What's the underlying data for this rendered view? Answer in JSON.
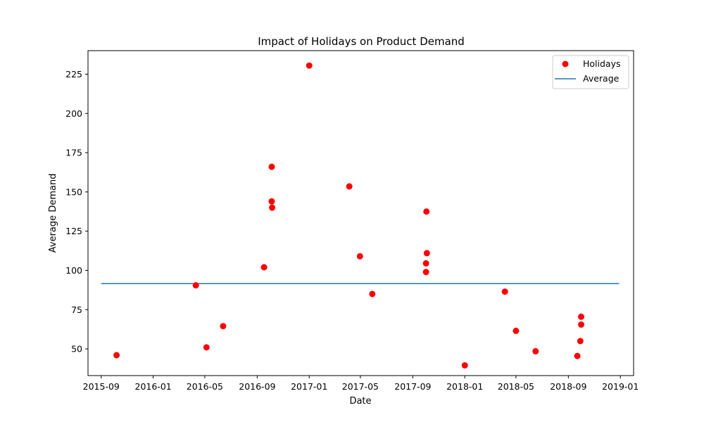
{
  "chart_data": {
    "type": "scatter",
    "title": "Impact of Holidays on Product Demand",
    "xlabel": "Date",
    "ylabel": "Average Demand",
    "xlim": [
      "2015-08-01",
      "2019-02-01"
    ],
    "ylim": [
      33,
      240
    ],
    "x_ticks": [
      "2015-09",
      "2016-01",
      "2016-05",
      "2016-09",
      "2017-01",
      "2017-05",
      "2017-09",
      "2018-01",
      "2018-05",
      "2018-09",
      "2019-01"
    ],
    "y_ticks": [
      50,
      75,
      100,
      125,
      150,
      175,
      200,
      225
    ],
    "grid": false,
    "legend_position": "top-right",
    "colors": {
      "holidays": "#ff0000",
      "average": "#1f77b4"
    },
    "series": [
      {
        "name": "Holidays",
        "kind": "scatter",
        "points": [
          {
            "x": "2015-10-07",
            "y": 46
          },
          {
            "x": "2016-04-10",
            "y": 90.5
          },
          {
            "x": "2016-05-05",
            "y": 51
          },
          {
            "x": "2016-06-13",
            "y": 64.5
          },
          {
            "x": "2016-09-17",
            "y": 102
          },
          {
            "x": "2016-10-05",
            "y": 166
          },
          {
            "x": "2016-10-05",
            "y": 144
          },
          {
            "x": "2016-10-06",
            "y": 140
          },
          {
            "x": "2017-01-01",
            "y": 230.5
          },
          {
            "x": "2017-04-05",
            "y": 153.5
          },
          {
            "x": "2017-04-30",
            "y": 109
          },
          {
            "x": "2017-05-29",
            "y": 85
          },
          {
            "x": "2017-10-02",
            "y": 104.5
          },
          {
            "x": "2017-10-02",
            "y": 99
          },
          {
            "x": "2017-10-03",
            "y": 137.5
          },
          {
            "x": "2017-10-04",
            "y": 111
          },
          {
            "x": "2018-01-01",
            "y": 39.5
          },
          {
            "x": "2018-04-05",
            "y": 86.5
          },
          {
            "x": "2018-05-01",
            "y": 61.5
          },
          {
            "x": "2018-06-16",
            "y": 48.5
          },
          {
            "x": "2018-09-22",
            "y": 45.5
          },
          {
            "x": "2018-09-29",
            "y": 55
          },
          {
            "x": "2018-10-01",
            "y": 65.5
          },
          {
            "x": "2018-10-01",
            "y": 70.5
          }
        ]
      },
      {
        "name": "Average",
        "kind": "line",
        "points": [
          {
            "x": "2015-09-01",
            "y": 91.6
          },
          {
            "x": "2018-12-29",
            "y": 91.6
          }
        ]
      }
    ]
  }
}
